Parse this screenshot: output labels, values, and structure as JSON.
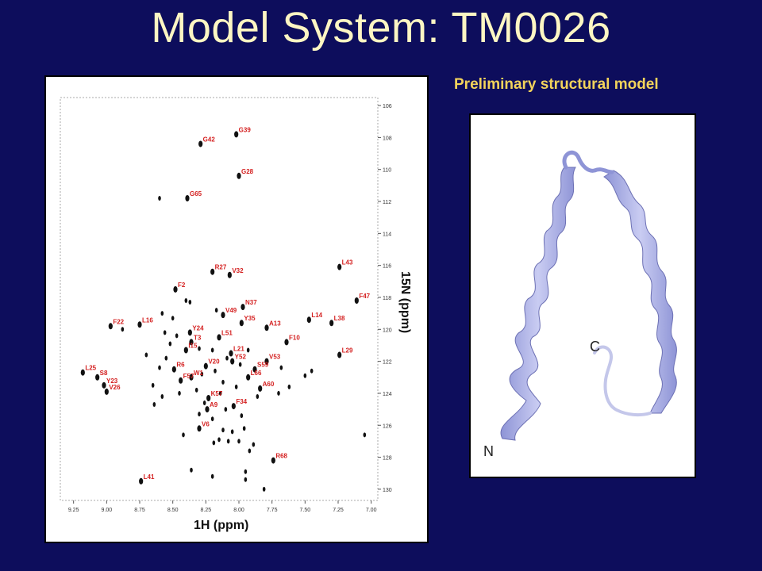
{
  "slide": {
    "title": "Model System: TM0026",
    "model_title": "Preliminary structural model"
  },
  "spectrum": {
    "x_axis_label": "1H (ppm)",
    "y_axis_label": "15N (ppm)",
    "x_ticks": [
      "9.25",
      "9.00",
      "8.75",
      "8.50",
      "8.25",
      "8.00",
      "7.75",
      "7.50",
      "7.25",
      "7.00"
    ],
    "y_ticks": [
      "106",
      "108",
      "110",
      "112",
      "114",
      "116",
      "118",
      "120",
      "122",
      "124",
      "126",
      "128",
      "130"
    ],
    "peak_color": "#111111",
    "label_color": "#d42020"
  },
  "chart_data": {
    "type": "scatter",
    "title": "",
    "xlabel": "1H (ppm)",
    "ylabel": "15N (ppm)",
    "xlim": [
      9.35,
      6.95
    ],
    "ylim": [
      105.5,
      130.7
    ],
    "x_reversed": true,
    "y_reversed": true,
    "series": [
      {
        "points": [
          {
            "label": "G42",
            "x": 8.29,
            "y": 108.4
          },
          {
            "label": "G39",
            "x": 8.02,
            "y": 107.8
          },
          {
            "label": "G28",
            "x": 8.0,
            "y": 110.4
          },
          {
            "label": "G65",
            "x": 8.39,
            "y": 111.8
          },
          {
            "label": "R27",
            "x": 8.2,
            "y": 116.4
          },
          {
            "label": "V32",
            "x": 8.07,
            "y": 116.6
          },
          {
            "label": "L43",
            "x": 7.24,
            "y": 116.1
          },
          {
            "label": "F2",
            "x": 8.48,
            "y": 117.5
          },
          {
            "label": "F47",
            "x": 7.11,
            "y": 118.2
          },
          {
            "label": "N37",
            "x": 7.97,
            "y": 118.6
          },
          {
            "label": "V49",
            "x": 8.12,
            "y": 119.1
          },
          {
            "label": "Y35",
            "x": 7.98,
            "y": 119.6
          },
          {
            "label": "A13",
            "x": 7.79,
            "y": 119.9
          },
          {
            "label": "L14",
            "x": 7.47,
            "y": 119.4
          },
          {
            "label": "L38",
            "x": 7.3,
            "y": 119.6
          },
          {
            "label": "F22",
            "x": 8.97,
            "y": 119.8
          },
          {
            "label": "L16",
            "x": 8.75,
            "y": 119.7
          },
          {
            "label": "Y24",
            "x": 8.37,
            "y": 120.2
          },
          {
            "label": "L51",
            "x": 8.15,
            "y": 120.5
          },
          {
            "label": "T3",
            "x": 8.36,
            "y": 120.8
          },
          {
            "label": "F10",
            "x": 7.64,
            "y": 120.8
          },
          {
            "label": "I15",
            "x": 8.4,
            "y": 121.3
          },
          {
            "label": "L21",
            "x": 8.06,
            "y": 121.5
          },
          {
            "label": "L29",
            "x": 7.24,
            "y": 121.6
          },
          {
            "label": "V53",
            "x": 7.79,
            "y": 122.0
          },
          {
            "label": "L25",
            "x": 9.18,
            "y": 122.7
          },
          {
            "label": "S8",
            "x": 9.07,
            "y": 123.0
          },
          {
            "label": "Y23",
            "x": 9.02,
            "y": 123.5
          },
          {
            "label": "V26",
            "x": 9.0,
            "y": 123.9
          },
          {
            "label": "R6",
            "x": 8.49,
            "y": 122.5
          },
          {
            "label": "F57",
            "x": 8.44,
            "y": 123.2
          },
          {
            "label": "V20",
            "x": 8.25,
            "y": 122.3
          },
          {
            "label": "W1",
            "x": 8.36,
            "y": 123.0
          },
          {
            "label": "Y52",
            "x": 8.05,
            "y": 122.0
          },
          {
            "label": "S59",
            "x": 7.88,
            "y": 122.5
          },
          {
            "label": "L66",
            "x": 7.93,
            "y": 123.0
          },
          {
            "label": "A60",
            "x": 7.84,
            "y": 123.7
          },
          {
            "label": "K57",
            "x": 8.23,
            "y": 124.3
          },
          {
            "label": "F34",
            "x": 8.04,
            "y": 124.8
          },
          {
            "label": "A9",
            "x": 8.24,
            "y": 125.0
          },
          {
            "label": "V6",
            "x": 8.3,
            "y": 126.2
          },
          {
            "label": "R68",
            "x": 7.74,
            "y": 128.2
          },
          {
            "label": "L41",
            "x": 8.74,
            "y": 129.5
          }
        ]
      }
    ],
    "unlabeled_peaks": [
      [
        8.4,
        118.2
      ],
      [
        8.37,
        118.3
      ],
      [
        8.88,
        120.0
      ],
      [
        8.56,
        120.2
      ],
      [
        8.52,
        120.9
      ],
      [
        8.55,
        121.8
      ],
      [
        8.6,
        122.4
      ],
      [
        8.65,
        123.5
      ],
      [
        8.58,
        124.2
      ],
      [
        8.45,
        124.0
      ],
      [
        8.3,
        125.3
      ],
      [
        8.2,
        125.6
      ],
      [
        8.1,
        125.0
      ],
      [
        7.98,
        125.4
      ],
      [
        7.96,
        126.2
      ],
      [
        8.05,
        126.4
      ],
      [
        8.12,
        126.3
      ],
      [
        8.0,
        127.0
      ],
      [
        7.92,
        127.6
      ],
      [
        8.19,
        127.1
      ],
      [
        8.08,
        127.0
      ],
      [
        7.89,
        127.2
      ],
      [
        8.36,
        128.8
      ],
      [
        8.2,
        129.2
      ],
      [
        7.95,
        128.9
      ],
      [
        7.81,
        130.0
      ],
      [
        8.6,
        111.8
      ],
      [
        7.95,
        129.4
      ],
      [
        8.42,
        126.6
      ],
      [
        8.15,
        126.9
      ],
      [
        8.28,
        122.8
      ],
      [
        8.18,
        122.6
      ],
      [
        8.12,
        123.3
      ],
      [
        8.02,
        123.6
      ],
      [
        8.32,
        123.8
      ],
      [
        8.14,
        124.0
      ],
      [
        7.99,
        122.2
      ],
      [
        8.09,
        121.8
      ],
      [
        8.2,
        121.3
      ],
      [
        8.3,
        121.2
      ],
      [
        7.93,
        121.3
      ],
      [
        8.47,
        120.4
      ],
      [
        7.68,
        122.4
      ],
      [
        7.5,
        122.9
      ],
      [
        7.45,
        122.6
      ],
      [
        7.62,
        123.6
      ],
      [
        7.7,
        124.0
      ],
      [
        8.7,
        121.6
      ],
      [
        8.26,
        124.6
      ],
      [
        7.86,
        124.2
      ],
      [
        8.5,
        119.3
      ],
      [
        8.58,
        119.0
      ],
      [
        8.17,
        118.8
      ],
      [
        7.05,
        126.6
      ],
      [
        8.64,
        124.7
      ]
    ]
  },
  "model": {
    "n_label": "N",
    "c_label": "C",
    "ribbon_color": "#b4b9e8"
  }
}
